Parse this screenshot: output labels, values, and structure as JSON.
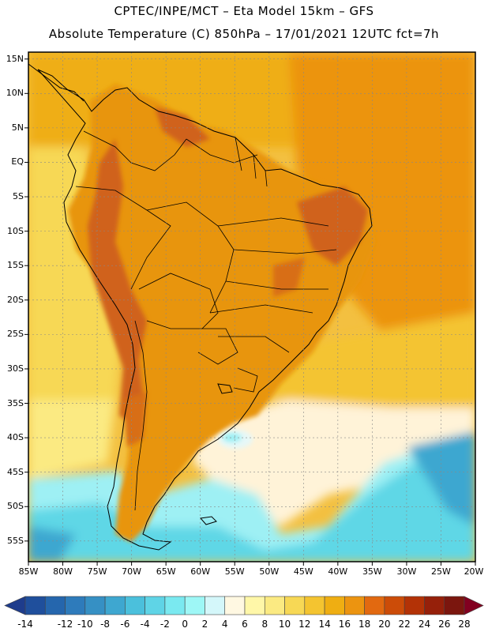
{
  "header": {
    "line1": "CPTEC/INPE/MCT –  Eta Model 15km – GFS",
    "line2": "Absolute Temperature (C) 850hPa – 17/01/2021 12UTC fct=7h"
  },
  "map": {
    "lon_range": [
      -85,
      -20
    ],
    "lat_range": [
      -58,
      16
    ],
    "lat_ticks": [
      {
        "value": 15,
        "label": "15N"
      },
      {
        "value": 10,
        "label": "10N"
      },
      {
        "value": 5,
        "label": "5N"
      },
      {
        "value": 0,
        "label": "EQ"
      },
      {
        "value": -5,
        "label": "5S"
      },
      {
        "value": -10,
        "label": "10S"
      },
      {
        "value": -15,
        "label": "15S"
      },
      {
        "value": -20,
        "label": "20S"
      },
      {
        "value": -25,
        "label": "25S"
      },
      {
        "value": -30,
        "label": "30S"
      },
      {
        "value": -35,
        "label": "35S"
      },
      {
        "value": -40,
        "label": "40S"
      },
      {
        "value": -45,
        "label": "45S"
      },
      {
        "value": -50,
        "label": "50S"
      },
      {
        "value": -55,
        "label": "55S"
      }
    ],
    "lon_ticks": [
      {
        "value": -85,
        "label": "85W"
      },
      {
        "value": -80,
        "label": "80W"
      },
      {
        "value": -75,
        "label": "75W"
      },
      {
        "value": -70,
        "label": "70W"
      },
      {
        "value": -65,
        "label": "65W"
      },
      {
        "value": -60,
        "label": "60W"
      },
      {
        "value": -55,
        "label": "55W"
      },
      {
        "value": -50,
        "label": "50W"
      },
      {
        "value": -45,
        "label": "45W"
      },
      {
        "value": -40,
        "label": "40W"
      },
      {
        "value": -35,
        "label": "35W"
      },
      {
        "value": -30,
        "label": "30W"
      },
      {
        "value": -25,
        "label": "25W"
      },
      {
        "value": -20,
        "label": "20W"
      }
    ]
  },
  "colorbar": {
    "labels": [
      "-14",
      "-12",
      "-10",
      "-8",
      "-6",
      "-4",
      "-2",
      "0",
      "2",
      "4",
      "6",
      "8",
      "10",
      "12",
      "14",
      "16",
      "18",
      "20",
      "22",
      "24",
      "26",
      "28"
    ],
    "colors": [
      "#1e3c8c",
      "#1f4f9c",
      "#2566ad",
      "#2e7bbb",
      "#3690c4",
      "#3ea7d0",
      "#4bc0dc",
      "#5fd4e6",
      "#7ae9f0",
      "#9ef7f6",
      "#d4f7fa",
      "#fff8e2",
      "#fff7a8",
      "#fbea82",
      "#f7d855",
      "#f4c430",
      "#efae12",
      "#ec9410",
      "#e26910",
      "#cc4c08",
      "#b33206",
      "#96200a",
      "#7b160e",
      "#820020"
    ]
  },
  "colors": {
    "hot": "#d0621a",
    "warm": "#e8950e",
    "mild": "#f0b010",
    "ocean_warm": "#f3c040",
    "cool": "#fff3d8",
    "cold": "#9ef0f4",
    "colder": "#5fd7e6"
  }
}
